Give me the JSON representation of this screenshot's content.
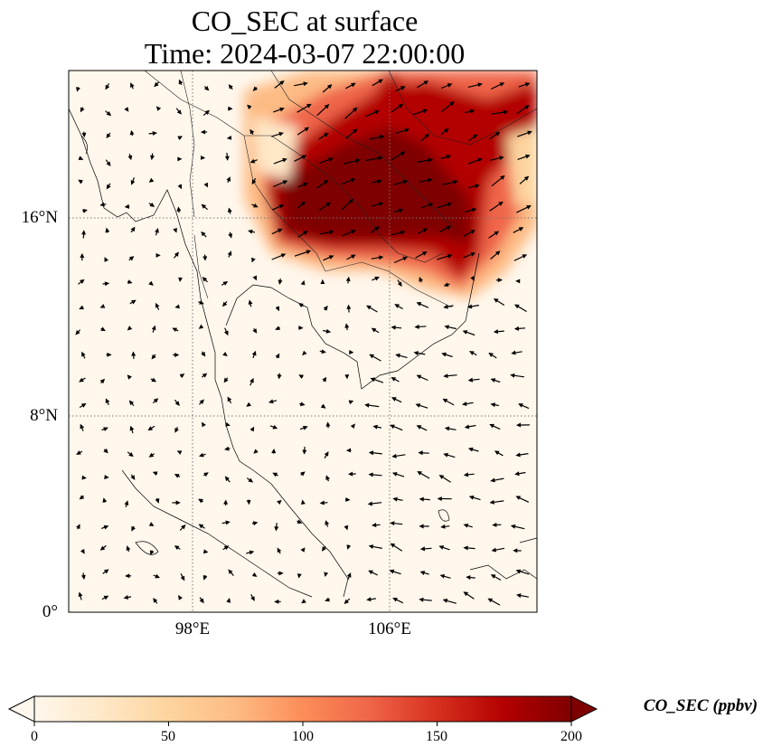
{
  "title": {
    "line1": "CO_SEC at surface",
    "line2": "Time: 2024-03-07 22:00:00"
  },
  "map": {
    "lon_range": [
      93,
      112
    ],
    "lat_range": [
      0,
      22
    ],
    "lat_ticks": [
      "16°N",
      "8°N",
      "0°"
    ],
    "lon_ticks": [
      "98°E",
      "106°E"
    ],
    "gridlines": "dotted",
    "features": [
      "coastlines",
      "country-borders",
      "wind-vectors"
    ]
  },
  "colorbar": {
    "label": "CO_SEC (ppbv)",
    "ticks": [
      "0",
      "50",
      "100",
      "150",
      "200"
    ],
    "min": 0,
    "max": 200,
    "colormap": "OrRd",
    "extend": "both",
    "colors": [
      "#fff7ec",
      "#fee8c8",
      "#fdd49e",
      "#fdbb84",
      "#fc8d59",
      "#ef6548",
      "#d7301f",
      "#b30000",
      "#7f0000"
    ]
  }
}
